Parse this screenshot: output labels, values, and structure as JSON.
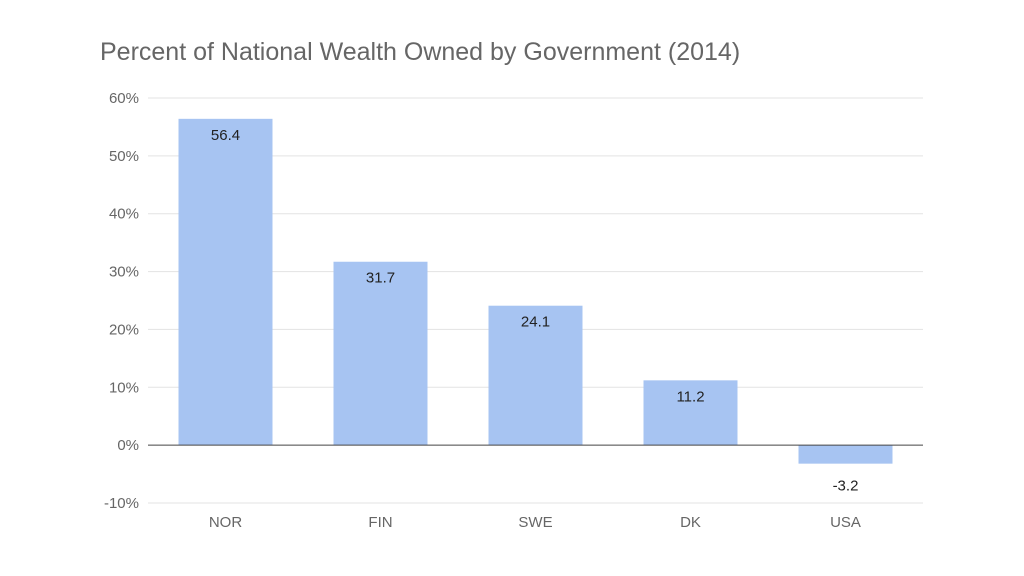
{
  "chart_data": {
    "type": "bar",
    "title": "Percent of National Wealth Owned by Government (2014)",
    "xlabel": "",
    "ylabel": "",
    "categories": [
      "NOR",
      "FIN",
      "SWE",
      "DK",
      "USA"
    ],
    "values": [
      56.4,
      31.7,
      24.1,
      11.2,
      -3.2
    ],
    "data_labels": [
      "56.4",
      "31.7",
      "24.1",
      "11.2",
      "-3.2"
    ],
    "ylim": [
      -10,
      60
    ],
    "yticks": [
      -10,
      0,
      10,
      20,
      30,
      40,
      50,
      60
    ],
    "ytick_labels": [
      "-10%",
      "0%",
      "10%",
      "20%",
      "30%",
      "40%",
      "50%",
      "60%"
    ],
    "grid": true,
    "legend": "none",
    "bar_color": "#a7c4f2"
  }
}
